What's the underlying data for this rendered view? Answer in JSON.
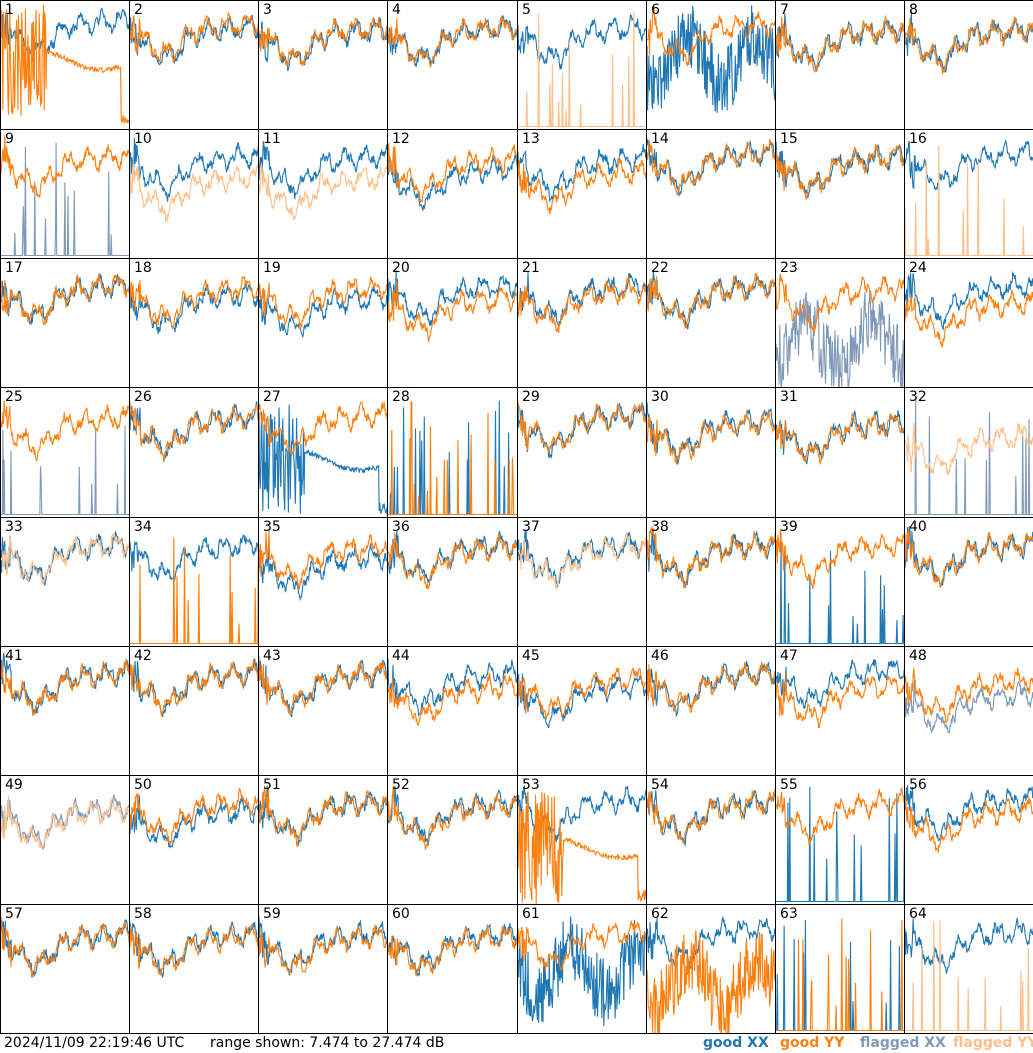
{
  "chart_data": {
    "type": "line",
    "description_units": "dB",
    "grid": {
      "columns": 8,
      "rows": 8
    },
    "ylim": [
      7.474,
      27.474
    ],
    "colors": {
      "good_xx": "#1f77b4",
      "good_yy": "#ff7f0e",
      "flagged_xx": "#7f9ab8",
      "flagged_yy": "#ffbf8a"
    },
    "legend": {
      "good_xx": "good XX",
      "good_yy": "good YY",
      "flagged_xx": "flagged XX",
      "flagged_yy": "flagged YY"
    },
    "panels": [
      {
        "id": "1",
        "xx": "good",
        "yy": "good",
        "xx_kind": "normal",
        "yy_kind": "dropout",
        "xx_level": 0.78,
        "yy_level": 0.55
      },
      {
        "id": "2",
        "xx": "good",
        "yy": "good",
        "xx_kind": "normal",
        "yy_kind": "normal",
        "xx_level": 0.72,
        "yy_level": 0.75
      },
      {
        "id": "3",
        "xx": "good",
        "yy": "good",
        "xx_kind": "normal",
        "yy_kind": "normal",
        "xx_level": 0.7,
        "yy_level": 0.72
      },
      {
        "id": "4",
        "xx": "good",
        "yy": "good",
        "xx_kind": "normal",
        "yy_kind": "normal",
        "xx_level": 0.72,
        "yy_level": 0.72
      },
      {
        "id": "5",
        "xx": "good",
        "yy": "flagged",
        "xx_kind": "normal",
        "yy_kind": "spiky",
        "xx_level": 0.72,
        "yy_level": 0.05
      },
      {
        "id": "6",
        "xx": "good",
        "yy": "good",
        "xx_kind": "noisy",
        "yy_kind": "normal",
        "xx_level": 0.55,
        "yy_level": 0.75
      },
      {
        "id": "7",
        "xx": "good",
        "yy": "good",
        "xx_kind": "normal",
        "yy_kind": "normal",
        "xx_level": 0.7,
        "yy_level": 0.7
      },
      {
        "id": "8",
        "xx": "good",
        "yy": "good",
        "xx_kind": "normal",
        "yy_kind": "normal",
        "xx_level": 0.7,
        "yy_level": 0.7
      },
      {
        "id": "9",
        "xx": "flagged",
        "yy": "good",
        "xx_kind": "spiky",
        "yy_kind": "normal",
        "xx_level": 0.05,
        "yy_level": 0.72
      },
      {
        "id": "10",
        "xx": "good",
        "yy": "flagged",
        "xx_kind": "normal",
        "yy_kind": "normal",
        "xx_level": 0.72,
        "yy_level": 0.55
      },
      {
        "id": "11",
        "xx": "good",
        "yy": "flagged",
        "xx_kind": "normal",
        "yy_kind": "normal",
        "xx_level": 0.72,
        "yy_level": 0.55
      },
      {
        "id": "12",
        "xx": "good",
        "yy": "good",
        "xx_kind": "normal",
        "yy_kind": "normal",
        "xx_level": 0.62,
        "yy_level": 0.7
      },
      {
        "id": "13",
        "xx": "good",
        "yy": "good",
        "xx_kind": "normal",
        "yy_kind": "normal",
        "xx_level": 0.7,
        "yy_level": 0.6
      },
      {
        "id": "14",
        "xx": "good",
        "yy": "good",
        "xx_kind": "normal",
        "yy_kind": "normal",
        "xx_level": 0.75,
        "yy_level": 0.75
      },
      {
        "id": "15",
        "xx": "good",
        "yy": "good",
        "xx_kind": "normal",
        "yy_kind": "normal",
        "xx_level": 0.72,
        "yy_level": 0.72
      },
      {
        "id": "16",
        "xx": "good",
        "yy": "flagged",
        "xx_kind": "normal",
        "yy_kind": "spiky",
        "xx_level": 0.75,
        "yy_level": 0.05
      },
      {
        "id": "17",
        "xx": "good",
        "yy": "good",
        "xx_kind": "normal",
        "yy_kind": "normal",
        "xx_level": 0.72,
        "yy_level": 0.72
      },
      {
        "id": "18",
        "xx": "good",
        "yy": "good",
        "xx_kind": "normal",
        "yy_kind": "normal",
        "xx_level": 0.65,
        "yy_level": 0.7
      },
      {
        "id": "19",
        "xx": "good",
        "yy": "good",
        "xx_kind": "normal",
        "yy_kind": "normal",
        "xx_level": 0.62,
        "yy_level": 0.7
      },
      {
        "id": "20",
        "xx": "good",
        "yy": "good",
        "xx_kind": "normal",
        "yy_kind": "normal",
        "xx_level": 0.72,
        "yy_level": 0.62
      },
      {
        "id": "21",
        "xx": "good",
        "yy": "good",
        "xx_kind": "normal",
        "yy_kind": "normal",
        "xx_level": 0.72,
        "yy_level": 0.68
      },
      {
        "id": "22",
        "xx": "good",
        "yy": "good",
        "xx_kind": "normal",
        "yy_kind": "normal",
        "xx_level": 0.72,
        "yy_level": 0.72
      },
      {
        "id": "23",
        "xx": "flagged",
        "yy": "good",
        "xx_kind": "noisy",
        "yy_kind": "normal",
        "xx_level": 0.35,
        "yy_level": 0.7
      },
      {
        "id": "24",
        "xx": "good",
        "yy": "good",
        "xx_kind": "normal",
        "yy_kind": "normal",
        "xx_level": 0.72,
        "yy_level": 0.58
      },
      {
        "id": "25",
        "xx": "flagged",
        "yy": "good",
        "xx_kind": "spiky",
        "yy_kind": "normal",
        "xx_level": 0.05,
        "yy_level": 0.7
      },
      {
        "id": "26",
        "xx": "good",
        "yy": "good",
        "xx_kind": "normal",
        "yy_kind": "normal",
        "xx_level": 0.7,
        "yy_level": 0.7
      },
      {
        "id": "27",
        "xx": "good",
        "yy": "good",
        "xx_kind": "dropout",
        "yy_kind": "normal",
        "xx_level": 0.45,
        "yy_level": 0.72
      },
      {
        "id": "28",
        "xx": "good",
        "yy": "good",
        "xx_kind": "spiky",
        "yy_kind": "spiky",
        "xx_level": 0.05,
        "yy_level": 0.05
      },
      {
        "id": "29",
        "xx": "good",
        "yy": "good",
        "xx_kind": "normal",
        "yy_kind": "normal",
        "xx_level": 0.72,
        "yy_level": 0.72
      },
      {
        "id": "30",
        "xx": "good",
        "yy": "good",
        "xx_kind": "normal",
        "yy_kind": "normal",
        "xx_level": 0.68,
        "yy_level": 0.66
      },
      {
        "id": "31",
        "xx": "good",
        "yy": "good",
        "xx_kind": "normal",
        "yy_kind": "normal",
        "xx_level": 0.66,
        "yy_level": 0.65
      },
      {
        "id": "32",
        "xx": "flagged",
        "yy": "flagged",
        "xx_kind": "spiky",
        "yy_kind": "normal",
        "xx_level": 0.05,
        "yy_level": 0.55
      },
      {
        "id": "33",
        "xx": "good",
        "yy": "flagged",
        "xx_kind": "normal",
        "yy_kind": "normal",
        "xx_level": 0.72,
        "yy_level": 0.72
      },
      {
        "id": "34",
        "xx": "good",
        "yy": "good",
        "xx_kind": "normal",
        "yy_kind": "spiky",
        "xx_level": 0.72,
        "yy_level": 0.05
      },
      {
        "id": "35",
        "xx": "good",
        "yy": "good",
        "xx_kind": "normal",
        "yy_kind": "normal",
        "xx_level": 0.62,
        "yy_level": 0.7
      },
      {
        "id": "36",
        "xx": "good",
        "yy": "good",
        "xx_kind": "normal",
        "yy_kind": "normal",
        "xx_level": 0.72,
        "yy_level": 0.7
      },
      {
        "id": "37",
        "xx": "good",
        "yy": "flagged",
        "xx_kind": "normal",
        "yy_kind": "normal",
        "xx_level": 0.72,
        "yy_level": 0.7
      },
      {
        "id": "38",
        "xx": "good",
        "yy": "good",
        "xx_kind": "normal",
        "yy_kind": "normal",
        "xx_level": 0.72,
        "yy_level": 0.72
      },
      {
        "id": "39",
        "xx": "good",
        "yy": "good",
        "xx_kind": "spiky",
        "yy_kind": "normal",
        "xx_level": 0.05,
        "yy_level": 0.72
      },
      {
        "id": "40",
        "xx": "good",
        "yy": "good",
        "xx_kind": "normal",
        "yy_kind": "normal",
        "xx_level": 0.72,
        "yy_level": 0.72
      },
      {
        "id": "41",
        "xx": "good",
        "yy": "good",
        "xx_kind": "normal",
        "yy_kind": "normal",
        "xx_level": 0.72,
        "yy_level": 0.72
      },
      {
        "id": "42",
        "xx": "good",
        "yy": "good",
        "xx_kind": "normal",
        "yy_kind": "normal",
        "xx_level": 0.72,
        "yy_level": 0.72
      },
      {
        "id": "43",
        "xx": "good",
        "yy": "good",
        "xx_kind": "normal",
        "yy_kind": "normal",
        "xx_level": 0.72,
        "yy_level": 0.72
      },
      {
        "id": "44",
        "xx": "good",
        "yy": "good",
        "xx_kind": "normal",
        "yy_kind": "normal",
        "xx_level": 0.72,
        "yy_level": 0.62
      },
      {
        "id": "45",
        "xx": "good",
        "yy": "good",
        "xx_kind": "normal",
        "yy_kind": "normal",
        "xx_level": 0.62,
        "yy_level": 0.68
      },
      {
        "id": "46",
        "xx": "good",
        "yy": "good",
        "xx_kind": "normal",
        "yy_kind": "normal",
        "xx_level": 0.72,
        "yy_level": 0.72
      },
      {
        "id": "47",
        "xx": "good",
        "yy": "good",
        "xx_kind": "normal",
        "yy_kind": "normal",
        "xx_level": 0.75,
        "yy_level": 0.62
      },
      {
        "id": "48",
        "xx": "flagged",
        "yy": "good",
        "xx_kind": "normal",
        "yy_kind": "normal",
        "xx_level": 0.55,
        "yy_level": 0.66
      },
      {
        "id": "49",
        "xx": "flagged",
        "yy": "flagged",
        "xx_kind": "normal",
        "yy_kind": "normal",
        "xx_level": 0.68,
        "yy_level": 0.66
      },
      {
        "id": "50",
        "xx": "good",
        "yy": "good",
        "xx_kind": "normal",
        "yy_kind": "normal",
        "xx_level": 0.66,
        "yy_level": 0.72
      },
      {
        "id": "51",
        "xx": "good",
        "yy": "good",
        "xx_kind": "normal",
        "yy_kind": "normal",
        "xx_level": 0.72,
        "yy_level": 0.72
      },
      {
        "id": "52",
        "xx": "good",
        "yy": "good",
        "xx_kind": "normal",
        "yy_kind": "normal",
        "xx_level": 0.72,
        "yy_level": 0.7
      },
      {
        "id": "53",
        "xx": "good",
        "yy": "good",
        "xx_kind": "normal",
        "yy_kind": "dropout",
        "xx_level": 0.75,
        "yy_level": 0.45
      },
      {
        "id": "54",
        "xx": "good",
        "yy": "good",
        "xx_kind": "normal",
        "yy_kind": "normal",
        "xx_level": 0.72,
        "yy_level": 0.72
      },
      {
        "id": "55",
        "xx": "good",
        "yy": "good",
        "xx_kind": "spiky",
        "yy_kind": "normal",
        "xx_level": 0.05,
        "yy_level": 0.72
      },
      {
        "id": "56",
        "xx": "good",
        "yy": "good",
        "xx_kind": "normal",
        "yy_kind": "normal",
        "xx_level": 0.75,
        "yy_level": 0.66
      },
      {
        "id": "57",
        "xx": "good",
        "yy": "good",
        "xx_kind": "normal",
        "yy_kind": "normal",
        "xx_level": 0.7,
        "yy_level": 0.7
      },
      {
        "id": "58",
        "xx": "good",
        "yy": "good",
        "xx_kind": "normal",
        "yy_kind": "normal",
        "xx_level": 0.7,
        "yy_level": 0.68
      },
      {
        "id": "59",
        "xx": "good",
        "yy": "good",
        "xx_kind": "normal",
        "yy_kind": "normal",
        "xx_level": 0.7,
        "yy_level": 0.68
      },
      {
        "id": "60",
        "xx": "good",
        "yy": "good",
        "xx_kind": "normal",
        "yy_kind": "normal",
        "xx_level": 0.7,
        "yy_level": 0.68
      },
      {
        "id": "61",
        "xx": "good",
        "yy": "good",
        "xx_kind": "noisy",
        "yy_kind": "normal",
        "xx_level": 0.5,
        "yy_level": 0.72
      },
      {
        "id": "62",
        "xx": "good",
        "yy": "good",
        "xx_kind": "normal",
        "yy_kind": "noisy",
        "xx_level": 0.75,
        "yy_level": 0.4
      },
      {
        "id": "63",
        "xx": "good",
        "yy": "good",
        "xx_kind": "spiky",
        "yy_kind": "spiky",
        "xx_level": 0.05,
        "yy_level": 0.05
      },
      {
        "id": "64",
        "xx": "good",
        "yy": "flagged",
        "xx_kind": "normal",
        "yy_kind": "spiky",
        "xx_level": 0.72,
        "yy_level": 0.05
      }
    ]
  },
  "footer": {
    "timestamp": "2024/11/09 22:19:46 UTC",
    "range": "range shown: 7.474 to 27.474 dB"
  }
}
